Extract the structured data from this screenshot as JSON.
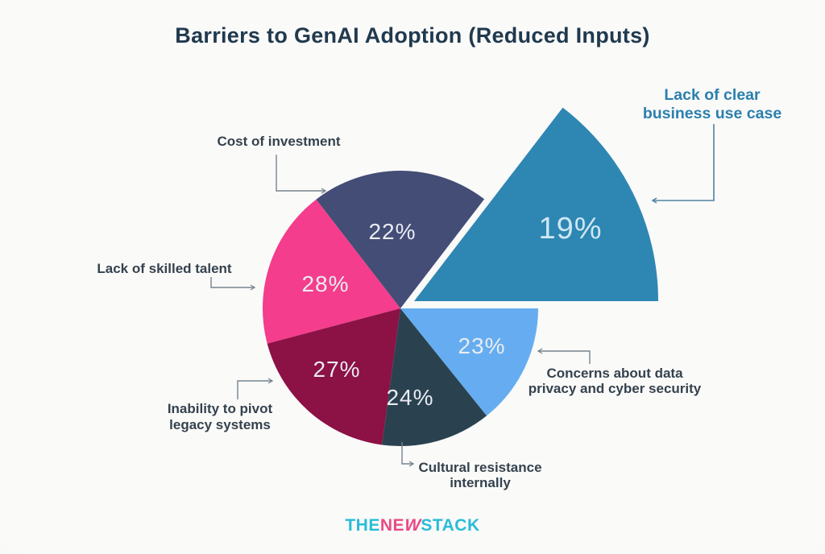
{
  "title": "Barriers to GenAI Adoption (Reduced Inputs)",
  "chart_data": {
    "type": "pie",
    "title": "Barriers to GenAI Adoption (Reduced Inputs)",
    "unit": "%",
    "legend_position": "callout-labels",
    "pie_center": [
      497,
      383
    ],
    "pie_radius": 171,
    "exploded_center": [
      514,
      374
    ],
    "exploded_radius": 303,
    "slices": [
      {
        "id": "usecase",
        "label": "Lack of clear business use case",
        "value": 19,
        "pct": "19%",
        "color": "#2E86B3",
        "exploded": true,
        "start_deg": 0,
        "end_deg": 52.5
      },
      {
        "id": "cost",
        "label": "Cost of investment",
        "value": 22,
        "pct": "22%",
        "color": "#434D76",
        "exploded": false,
        "start_deg": 52.5,
        "end_deg": 127.7
      },
      {
        "id": "talent",
        "label": "Lack of skilled talent",
        "value": 28,
        "pct": "28%",
        "color": "#F43D8C",
        "exploded": false,
        "start_deg": 127.7,
        "end_deg": 194.8
      },
      {
        "id": "pivot",
        "label": "Inability to pivot legacy systems",
        "value": 27,
        "pct": "27%",
        "color": "#8C1145",
        "exploded": false,
        "start_deg": 194.8,
        "end_deg": 262.3
      },
      {
        "id": "cultural",
        "label": "Cultural resistance internally",
        "value": 24,
        "pct": "24%",
        "color": "#2A4250",
        "exploded": false,
        "start_deg": 262.3,
        "end_deg": 308.8
      },
      {
        "id": "privacy",
        "label": "Concerns about data privacy and cyber security",
        "value": 23,
        "pct": "23%",
        "color": "#65ADF0",
        "exploded": false,
        "start_deg": 308.8,
        "end_deg": 360
      }
    ]
  },
  "callouts": {
    "cost": {
      "line1": "Cost of investment"
    },
    "talent": {
      "line1": "Lack of skilled talent"
    },
    "pivot": {
      "line1": "Inability to pivot",
      "line2": "legacy systems"
    },
    "cultural": {
      "line1": "Cultural resistance",
      "line2": "internally"
    },
    "privacy": {
      "line1": "Concerns about data",
      "line2": "privacy and cyber security"
    },
    "usecase": {
      "line1": "Lack of clear",
      "line2": "business use case",
      "color": "#2B7FAD"
    }
  },
  "brand": {
    "the": "THE",
    "ne": "NE",
    "w": "W",
    "stack": "STACK",
    "cyan": "#29BCD8",
    "pink": "#E94B86"
  }
}
